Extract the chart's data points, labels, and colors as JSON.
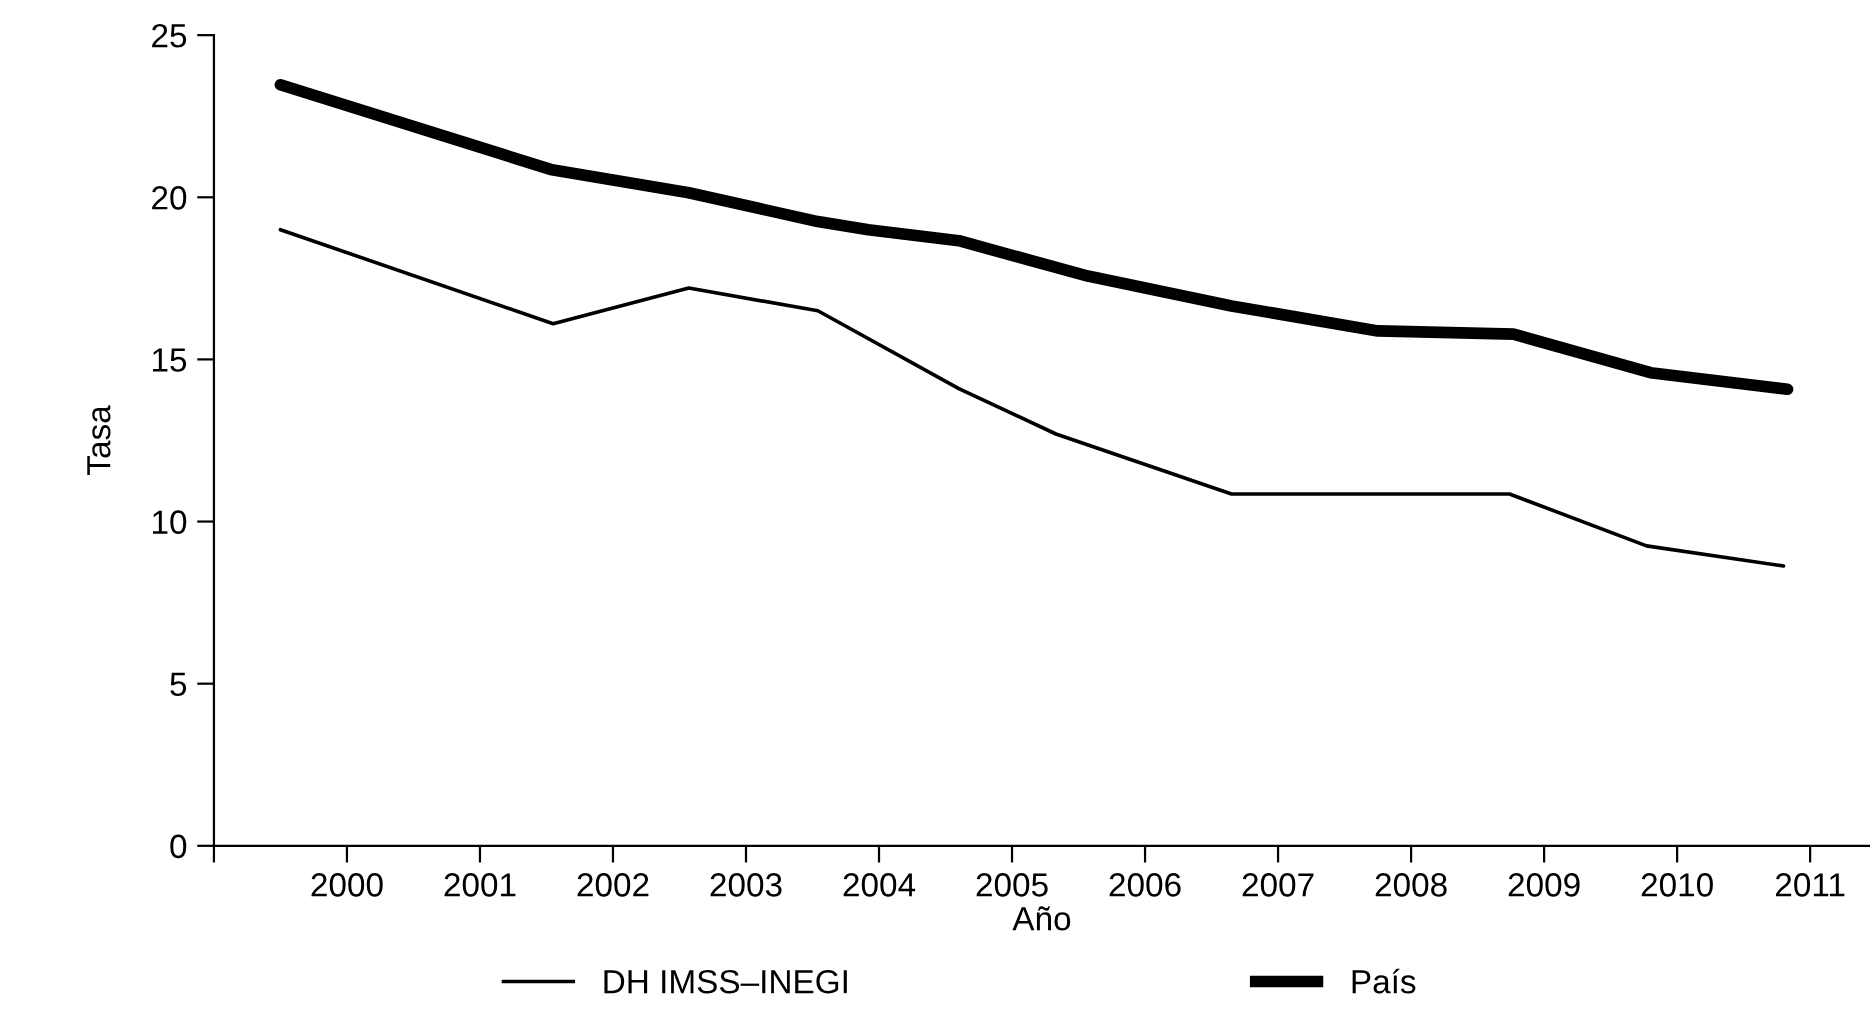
{
  "chart_data": {
    "type": "line",
    "xlabel": "Año",
    "ylabel": "Tasa",
    "xlim": [
      1999,
      2011.45
    ],
    "ylim": [
      0,
      25
    ],
    "xticks": [
      {
        "value": 1999,
        "label": null
      },
      2000,
      2001,
      2002,
      2003,
      2004,
      2005,
      2006,
      2007,
      2008,
      2009,
      2010,
      2011
    ],
    "yticks": [
      0,
      5,
      10,
      15,
      20,
      25
    ],
    "grid": false,
    "legend": "bottom",
    "marker": "none",
    "line_style": "solid",
    "series": [
      {
        "name": "DH IMSS–INEGI",
        "color": "#000000",
        "x": [
          1999.5,
          2001.55,
          2002.57,
          2003.54,
          2004.6,
          2005.33,
          2006.65,
          2008.74,
          2009.77,
          2010.8
        ],
        "values": [
          19.0,
          16.1,
          17.2,
          16.5,
          14.1,
          12.7,
          10.85,
          10.85,
          9.25,
          8.63
        ]
      },
      {
        "name": "País",
        "color": "#000000",
        "x": [
          1999.5,
          2001.53,
          2002.57,
          2003.54,
          2003.92,
          2004.6,
          2005.57,
          2006.65,
          2007.75,
          2008.77,
          2009.8,
          2010.83
        ],
        "values": [
          23.47,
          20.86,
          20.14,
          19.25,
          19.0,
          18.66,
          17.57,
          16.65,
          15.88,
          15.78,
          14.59,
          14.08
        ]
      }
    ]
  }
}
